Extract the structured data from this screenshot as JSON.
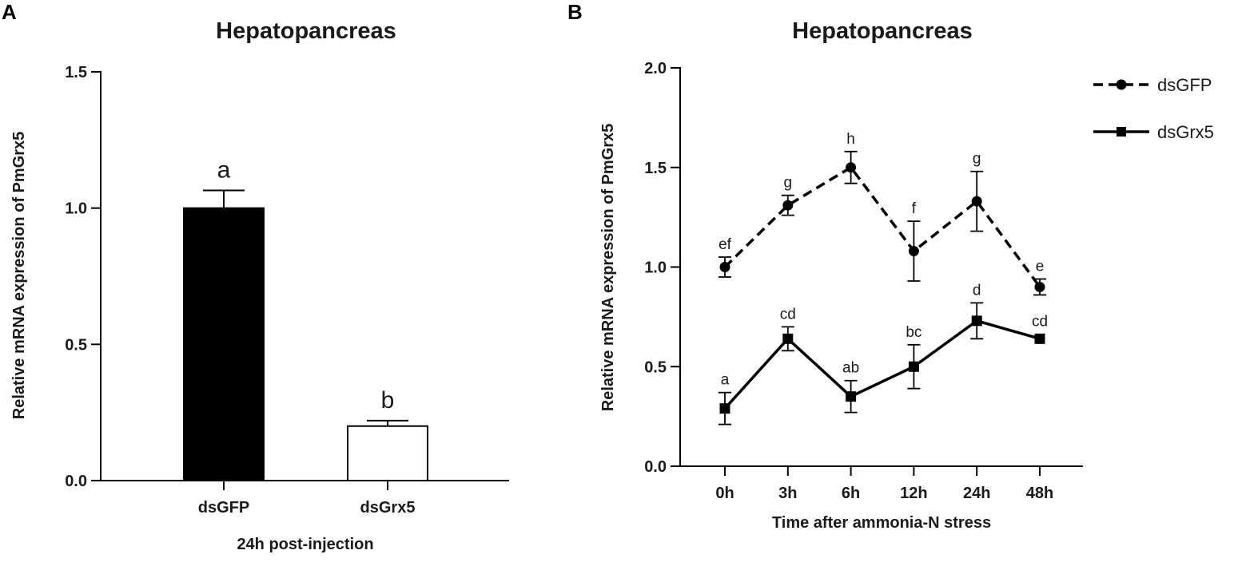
{
  "panel_labels": [
    "A",
    "B"
  ],
  "chart_data": [
    {
      "type": "bar",
      "title": "Hepatopancreas",
      "xlabel": "24h post-injection",
      "ylabel": "Relative mRNA expression of PmGrx5",
      "categories": [
        "dsGFP",
        "dsGrx5"
      ],
      "values": [
        1.0,
        0.2
      ],
      "errors": [
        0.065,
        0.02
      ],
      "significance": [
        "a",
        "b"
      ],
      "bar_colors": [
        "#000000",
        "#ffffff"
      ],
      "ylim": [
        0,
        1.5
      ],
      "yticks": [
        "0.0",
        "0.5",
        "1.0",
        "1.5"
      ]
    },
    {
      "type": "line",
      "title": "Hepatopancreas",
      "xlabel": "Time after ammonia-N stress",
      "ylabel": "Relative mRNA expression of PmGrx5",
      "categories": [
        "0h",
        "3h",
        "6h",
        "12h",
        "24h",
        "48h"
      ],
      "ylim": [
        0,
        2.0
      ],
      "yticks": [
        "0.0",
        "0.5",
        "1.0",
        "1.5",
        "2.0"
      ],
      "legend_position": "top-right",
      "series": [
        {
          "name": "dsGFP",
          "style": "dashed",
          "marker": "circle",
          "values": [
            1.0,
            1.31,
            1.5,
            1.08,
            1.33,
            0.9
          ],
          "errors": [
            0.05,
            0.05,
            0.08,
            0.15,
            0.15,
            0.04
          ],
          "significance": [
            "ef",
            "g",
            "h",
            "f",
            "g",
            "e"
          ]
        },
        {
          "name": "dsGrx5",
          "style": "solid",
          "marker": "square",
          "values": [
            0.29,
            0.64,
            0.35,
            0.5,
            0.73,
            0.64
          ],
          "errors": [
            0.08,
            0.06,
            0.08,
            0.11,
            0.09,
            0.0
          ],
          "significance": [
            "a",
            "cd",
            "ab",
            "bc",
            "d",
            "cd"
          ]
        }
      ]
    }
  ]
}
